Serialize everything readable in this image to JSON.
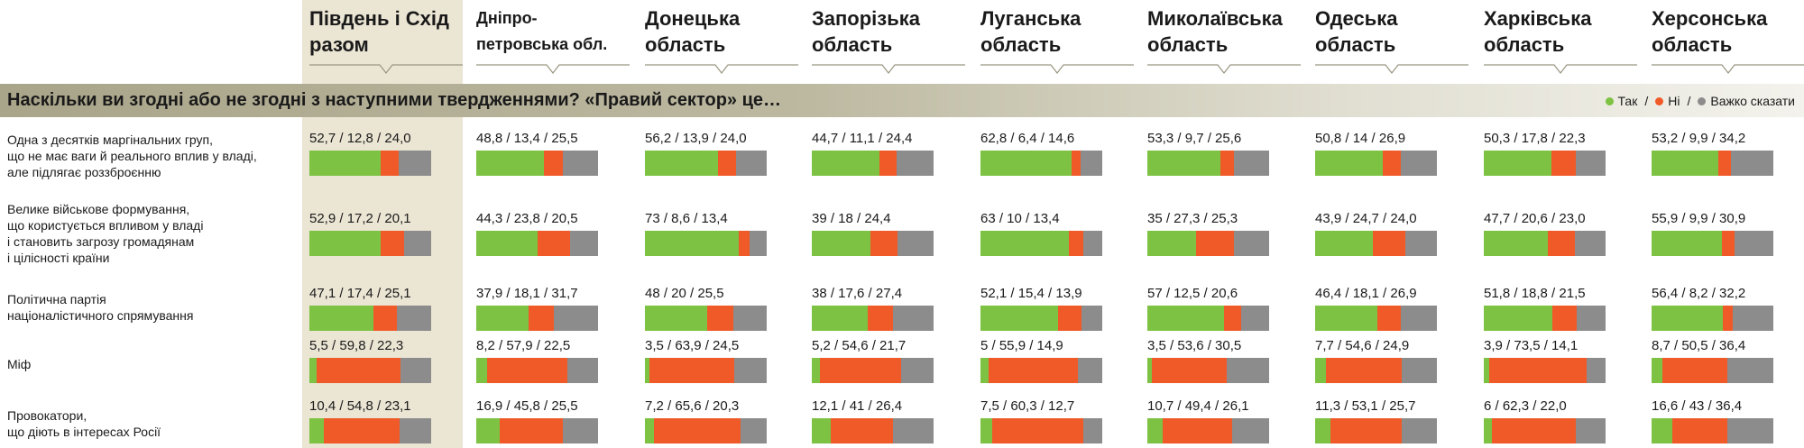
{
  "colors": {
    "yes": "#7dc242",
    "no": "#f05a28",
    "hard": "#8c8c8c",
    "banner": "#b3af96",
    "highlight": "#ebe5d4"
  },
  "question": "Наскільки ви згодні або не згодні з наступними твердженнями? «Правий сектор» це…",
  "legend": [
    {
      "label": "Так",
      "color": "#7dc242",
      "sep": "/"
    },
    {
      "label": "Ні",
      "color": "#f05a28",
      "sep": "/"
    },
    {
      "label": "Важко сказати",
      "color": "#8c8c8c",
      "sep": ""
    }
  ],
  "columns": [
    "Південь і Схід разом",
    "Дніпро- петровська обл.",
    "Донецька область",
    "Запорізька область",
    "Луганська область",
    "Миколаївська область",
    "Одеська область",
    "Харківська область",
    "Херсонська область"
  ],
  "rows": [
    "Одна з десятків маргінальних груп, що не має ваги й реального вплив у владі, але підлягає роззброєнню",
    "Велике військове формування, що користується впливом у владі і становить загрозу громадянам і цілісності країни",
    "Політична партія націоналістичного спрямування",
    "Міф",
    "Провокатори, що діють в інтересах Росії"
  ],
  "chart_data": {
    "type": "bar",
    "stacked": true,
    "title": "Наскільки ви згодні або не згодні з наступними твердженнями? «Правий сектор» це…",
    "series_names": [
      "Так",
      "Ні",
      "Важко сказати"
    ],
    "columns": [
      "Південь і Схід разом",
      "Дніпро- петровська обл.",
      "Донецька область",
      "Запорізька область",
      "Луганська область",
      "Миколаївська область",
      "Одеська область",
      "Харківська область",
      "Херсонська область"
    ],
    "rows": [
      "Одна з десятків маргінальних груп, що не має ваги й реального вплив у владі, але підлягає роззброєнню",
      "Велике військове формування, що користується впливом у владі і становить загрозу громадянам і цілісності країни",
      "Політична партія націоналістичного спрямування",
      "Міф",
      "Провокатори, що діють в інтересах Росії"
    ],
    "labels": [
      [
        "52,7 / 12,8 / 24,0",
        "48,8 / 13,4 / 25,5",
        "56,2 / 13,9 / 24,0",
        "44,7 / 11,1 / 24,4",
        "62,8 / 6,4 / 14,6",
        "53,3 / 9,7 / 25,6",
        "50,8 / 14 / 26,9",
        "50,3 / 17,8 / 22,3",
        "53,2 / 9,9 / 34,2"
      ],
      [
        "52,9 / 17,2 / 20,1",
        "44,3 / 23,8 / 20,5",
        "73 / 8,6 / 13,4",
        "39 / 18 / 24,4",
        "63 / 10 / 13,4",
        "35 / 27,3 / 25,3",
        "43,9 / 24,7 / 24,0",
        "47,7 / 20,6 / 23,0",
        "55,9 / 9,9 / 30,9"
      ],
      [
        "47,1 / 17,4 / 25,1",
        "37,9 / 18,1 / 31,7",
        "48 / 20 / 25,5",
        "38 / 17,6 / 27,4",
        "52,1 / 15,4 / 13,9",
        "57 / 12,5 / 20,6",
        "46,4 / 18,1 / 26,9",
        "51,8 / 18,8 / 21,5",
        "56,4 / 8,2 / 32,2"
      ],
      [
        "5,5 / 59,8 / 22,3",
        "8,2 / 57,9 / 22,5",
        "3,5 / 63,9 / 24,5",
        "5,2 / 54,6 / 21,7",
        "5 / 55,9 / 14,9",
        "3,5 / 53,6 / 30,5",
        "7,7 / 54,6 / 24,9",
        "3,9 / 73,5 / 14,1",
        "8,7 / 50,5 / 36,4"
      ],
      [
        "10,4 / 54,8 / 23,1",
        "16,9 / 45,8 / 25,5",
        "7,2 / 65,6 / 20,3",
        "12,1 / 41 / 26,4",
        "7,5 / 60,3 / 12,7",
        "10,7 / 49,4 / 26,1",
        "11,3 / 53,1 / 25,7",
        "6 / 62,3 / 22,0",
        "16,6 / 43 / 36,4"
      ]
    ],
    "values": [
      [
        [
          52.7,
          12.8,
          24.0
        ],
        [
          48.8,
          13.4,
          25.5
        ],
        [
          56.2,
          13.9,
          24.0
        ],
        [
          44.7,
          11.1,
          24.4
        ],
        [
          62.8,
          6.4,
          14.6
        ],
        [
          53.3,
          9.7,
          25.6
        ],
        [
          50.8,
          14,
          26.9
        ],
        [
          50.3,
          17.8,
          22.3
        ],
        [
          53.2,
          9.9,
          34.2
        ]
      ],
      [
        [
          52.9,
          17.2,
          20.1
        ],
        [
          44.3,
          23.8,
          20.5
        ],
        [
          73,
          8.6,
          13.4
        ],
        [
          39,
          18,
          24.4
        ],
        [
          63,
          10,
          13.4
        ],
        [
          35,
          27.3,
          25.3
        ],
        [
          43.9,
          24.7,
          24.0
        ],
        [
          47.7,
          20.6,
          23.0
        ],
        [
          55.9,
          9.9,
          30.9
        ]
      ],
      [
        [
          47.1,
          17.4,
          25.1
        ],
        [
          37.9,
          18.1,
          31.7
        ],
        [
          48,
          20,
          25.5
        ],
        [
          38,
          17.6,
          27.4
        ],
        [
          52.1,
          15.4,
          13.9
        ],
        [
          57,
          12.5,
          20.6
        ],
        [
          46.4,
          18.1,
          26.9
        ],
        [
          51.8,
          18.8,
          21.5
        ],
        [
          56.4,
          8.2,
          32.2
        ]
      ],
      [
        [
          5.5,
          59.8,
          22.3
        ],
        [
          8.2,
          57.9,
          22.5
        ],
        [
          3.5,
          63.9,
          24.5
        ],
        [
          5.2,
          54.6,
          21.7
        ],
        [
          5,
          55.9,
          14.9
        ],
        [
          3.5,
          53.6,
          30.5
        ],
        [
          7.7,
          54.6,
          24.9
        ],
        [
          3.9,
          73.5,
          14.1
        ],
        [
          8.7,
          50.5,
          36.4
        ]
      ],
      [
        [
          10.4,
          54.8,
          23.1
        ],
        [
          16.9,
          45.8,
          25.5
        ],
        [
          7.2,
          65.6,
          20.3
        ],
        [
          12.1,
          41,
          26.4
        ],
        [
          7.5,
          60.3,
          12.7
        ],
        [
          10.7,
          49.4,
          26.1
        ],
        [
          11.3,
          53.1,
          25.7
        ],
        [
          6,
          62.3,
          22.0
        ],
        [
          16.6,
          43,
          36.4
        ]
      ]
    ]
  }
}
